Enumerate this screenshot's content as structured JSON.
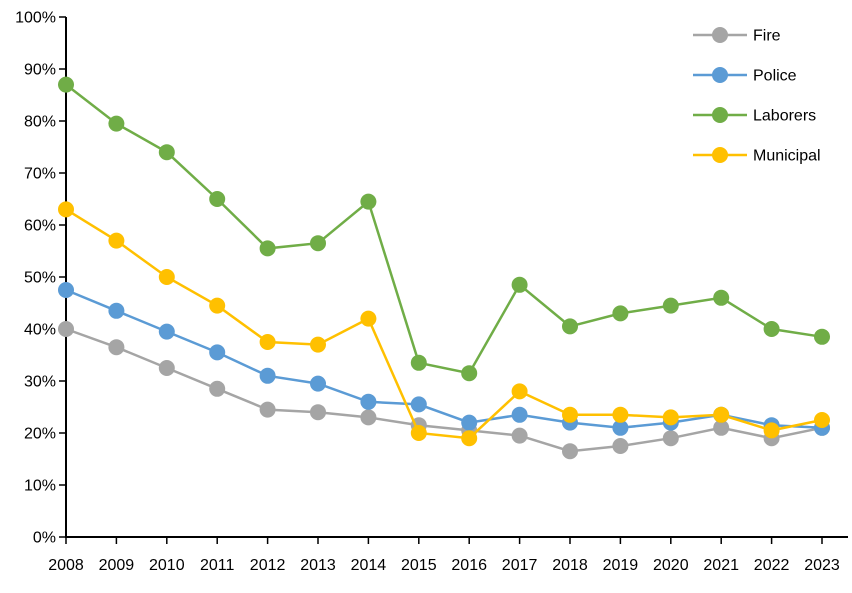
{
  "chart_data": {
    "type": "line",
    "title": "",
    "xlabel": "",
    "ylabel": "",
    "categories": [
      "2008",
      "2009",
      "2010",
      "2011",
      "2012",
      "2013",
      "2014",
      "2015",
      "2016",
      "2017",
      "2018",
      "2019",
      "2020",
      "2021",
      "2022",
      "2023"
    ],
    "series": [
      {
        "name": "Fire",
        "color": "#A5A5A5",
        "values": [
          40,
          36.5,
          32.5,
          28.5,
          24.5,
          24,
          23,
          21.5,
          20.5,
          19.5,
          16.5,
          17.5,
          19,
          21,
          19,
          21
        ]
      },
      {
        "name": "Police",
        "color": "#5B9BD5",
        "values": [
          47.5,
          43.5,
          39.5,
          35.5,
          31,
          29.5,
          26,
          25.5,
          22,
          23.5,
          22,
          21,
          22,
          23.5,
          21.5,
          21
        ]
      },
      {
        "name": "Laborers",
        "color": "#70AD47",
        "values": [
          87,
          79.5,
          74,
          65,
          55.5,
          56.5,
          64.5,
          33.5,
          31.5,
          48.5,
          40.5,
          43,
          44.5,
          46,
          40,
          38.5
        ]
      },
      {
        "name": "Municipal",
        "color": "#FFC000",
        "values": [
          63,
          57,
          50,
          44.5,
          37.5,
          37,
          42,
          20,
          19,
          28,
          23.5,
          23.5,
          23,
          23.5,
          20.5,
          22.5
        ]
      }
    ],
    "ylim": [
      0,
      100
    ],
    "ytick_values": [
      0,
      10,
      20,
      30,
      40,
      50,
      60,
      70,
      80,
      90,
      100
    ],
    "ytick_labels": [
      "0%",
      "10%",
      "20%",
      "30%",
      "40%",
      "50%",
      "60%",
      "70%",
      "80%",
      "90%",
      "100%"
    ],
    "grid": false,
    "legend_position": "top-right",
    "axis_color": "#000000",
    "marker_radius": 8,
    "line_width": 2.5
  }
}
